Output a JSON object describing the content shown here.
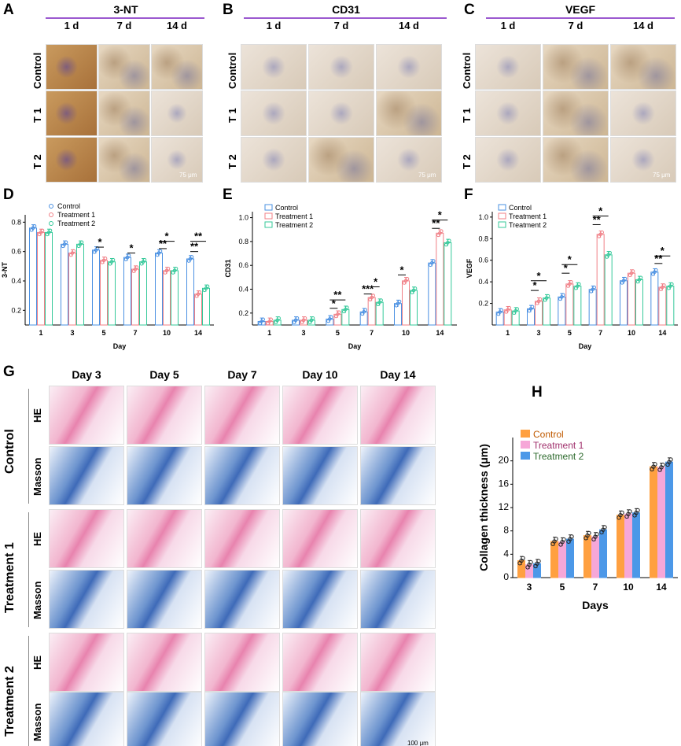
{
  "panels": {
    "A": {
      "letter": "A",
      "title": "3-NT",
      "days": [
        "1 d",
        "7 d",
        "14 d"
      ],
      "rows": [
        "Control",
        "T 1",
        "T 2"
      ],
      "scale": "75 μm"
    },
    "B": {
      "letter": "B",
      "title": "CD31",
      "days": [
        "1 d",
        "7 d",
        "14 d"
      ],
      "rows": [
        "Control",
        "T 1",
        "T 2"
      ],
      "scale": "75 μm"
    },
    "C": {
      "letter": "C",
      "title": "VEGF",
      "days": [
        "1 d",
        "7 d",
        "14 d"
      ],
      "rows": [
        "Control",
        "T 1",
        "T 2"
      ],
      "scale": "75 μm"
    },
    "D": {
      "letter": "D"
    },
    "E": {
      "letter": "E"
    },
    "F": {
      "letter": "F"
    },
    "G": {
      "letter": "G",
      "days": [
        "Day 3",
        "Day 5",
        "Day 7",
        "Day 10",
        "Day 14"
      ],
      "groups": [
        "Control",
        "Treatment 1",
        "Treatment 2"
      ],
      "stains": [
        "HE",
        "Masson"
      ],
      "scale": "100 μm"
    },
    "H": {
      "letter": "H"
    }
  },
  "chart_data": [
    {
      "id": "D",
      "type": "bar",
      "ylabel": "3-NT",
      "xlabel": "Day",
      "categories": [
        "1",
        "3",
        "5",
        "7",
        "10",
        "14"
      ],
      "ylim": [
        0.1,
        0.85
      ],
      "yticks": [
        0.2,
        0.4,
        0.6,
        0.8
      ],
      "series": [
        {
          "name": "Control",
          "color": "#4a90e2",
          "values": [
            0.76,
            0.65,
            0.61,
            0.56,
            0.59,
            0.55
          ]
        },
        {
          "name": "Treatment 1",
          "color": "#f07f86",
          "values": [
            0.73,
            0.59,
            0.54,
            0.48,
            0.47,
            0.31
          ]
        },
        {
          "name": "Treatment 2",
          "color": "#35c99a",
          "values": [
            0.73,
            0.65,
            0.53,
            0.53,
            0.47,
            0.35
          ]
        }
      ],
      "sig": [
        {
          "cat": 2,
          "label": "*",
          "a": 0,
          "b": 1,
          "y": 0.63
        },
        {
          "cat": 3,
          "label": "*",
          "a": 0,
          "b": 1,
          "y": 0.59
        },
        {
          "cat": 4,
          "label": "*",
          "a": 0,
          "b": 2,
          "y": 0.67
        },
        {
          "cat": 4,
          "label": "**",
          "a": 0,
          "b": 1,
          "y": 0.62
        },
        {
          "cat": 5,
          "label": "**",
          "a": 0,
          "b": 2,
          "y": 0.67
        },
        {
          "cat": 5,
          "label": "**",
          "a": 0,
          "b": 1,
          "y": 0.6
        }
      ]
    },
    {
      "id": "E",
      "type": "bar",
      "ylabel": "CD31",
      "xlabel": "Day",
      "categories": [
        "1",
        "3",
        "5",
        "7",
        "10",
        "14"
      ],
      "ylim": [
        0.1,
        1.05
      ],
      "yticks": [
        0.2,
        0.4,
        0.6,
        0.8,
        1.0
      ],
      "series": [
        {
          "name": "Control",
          "color": "#4a90e2",
          "values": [
            0.13,
            0.14,
            0.15,
            0.21,
            0.28,
            0.62
          ]
        },
        {
          "name": "Treatment 1",
          "color": "#f07f86",
          "values": [
            0.13,
            0.14,
            0.19,
            0.33,
            0.47,
            0.87
          ]
        },
        {
          "name": "Treatment 2",
          "color": "#35c99a",
          "values": [
            0.14,
            0.14,
            0.23,
            0.29,
            0.39,
            0.79
          ]
        }
      ],
      "sig": [
        {
          "cat": 2,
          "label": "**",
          "a": 0,
          "b": 2,
          "y": 0.31
        },
        {
          "cat": 2,
          "label": "*",
          "a": 0,
          "b": 1,
          "y": 0.24
        },
        {
          "cat": 3,
          "label": "*",
          "a": 1,
          "b": 2,
          "y": 0.42
        },
        {
          "cat": 3,
          "label": "***",
          "a": 0,
          "b": 1,
          "y": 0.36
        },
        {
          "cat": 4,
          "label": "*",
          "a": 0,
          "b": 1,
          "y": 0.52
        },
        {
          "cat": 5,
          "label": "*",
          "a": 0,
          "b": 2,
          "y": 0.98
        },
        {
          "cat": 5,
          "label": "**",
          "a": 0,
          "b": 1,
          "y": 0.91
        }
      ]
    },
    {
      "id": "F",
      "type": "bar",
      "ylabel": "VEGF",
      "xlabel": "Day",
      "categories": [
        "1",
        "3",
        "5",
        "7",
        "10",
        "14"
      ],
      "ylim": [
        0.0,
        1.05
      ],
      "yticks": [
        0.2,
        0.4,
        0.6,
        0.8,
        1.0
      ],
      "series": [
        {
          "name": "Control",
          "color": "#4a90e2",
          "values": [
            0.12,
            0.15,
            0.26,
            0.33,
            0.41,
            0.49
          ]
        },
        {
          "name": "Treatment 1",
          "color": "#f07f86",
          "values": [
            0.14,
            0.22,
            0.38,
            0.84,
            0.48,
            0.35
          ]
        },
        {
          "name": "Treatment 2",
          "color": "#35c99a",
          "values": [
            0.13,
            0.25,
            0.36,
            0.65,
            0.42,
            0.36
          ]
        }
      ],
      "sig": [
        {
          "cat": 1,
          "label": "*",
          "a": 0,
          "b": 2,
          "y": 0.41
        },
        {
          "cat": 1,
          "label": "*",
          "a": 0,
          "b": 1,
          "y": 0.32
        },
        {
          "cat": 2,
          "label": "*",
          "a": 0,
          "b": 2,
          "y": 0.56
        },
        {
          "cat": 2,
          "label": "*",
          "a": 0,
          "b": 1,
          "y": 0.48
        },
        {
          "cat": 3,
          "label": "*",
          "a": 0,
          "b": 2,
          "y": 1.01
        },
        {
          "cat": 3,
          "label": "**",
          "a": 0,
          "b": 1,
          "y": 0.93
        },
        {
          "cat": 5,
          "label": "*",
          "a": 0,
          "b": 2,
          "y": 0.64
        },
        {
          "cat": 5,
          "label": "**",
          "a": 0,
          "b": 1,
          "y": 0.57
        }
      ]
    },
    {
      "id": "H",
      "type": "bar",
      "ylabel": "Collagen thickness (μm)",
      "xlabel": "Days",
      "categories": [
        "3",
        "5",
        "7",
        "10",
        "14"
      ],
      "ylim": [
        0,
        24
      ],
      "yticks": [
        0,
        4,
        8,
        12,
        16,
        20
      ],
      "series": [
        {
          "name": "Control",
          "color": "#ffa040",
          "values": [
            2.9,
            6.2,
            7.2,
            10.7,
            19.0
          ]
        },
        {
          "name": "Treatment 1",
          "color": "#f6a7d8",
          "values": [
            2.2,
            6.1,
            7.0,
            10.9,
            18.9
          ]
        },
        {
          "name": "Treatment 2",
          "color": "#4c98e8",
          "values": [
            2.4,
            6.6,
            8.2,
            11.1,
            19.8
          ]
        }
      ]
    }
  ]
}
